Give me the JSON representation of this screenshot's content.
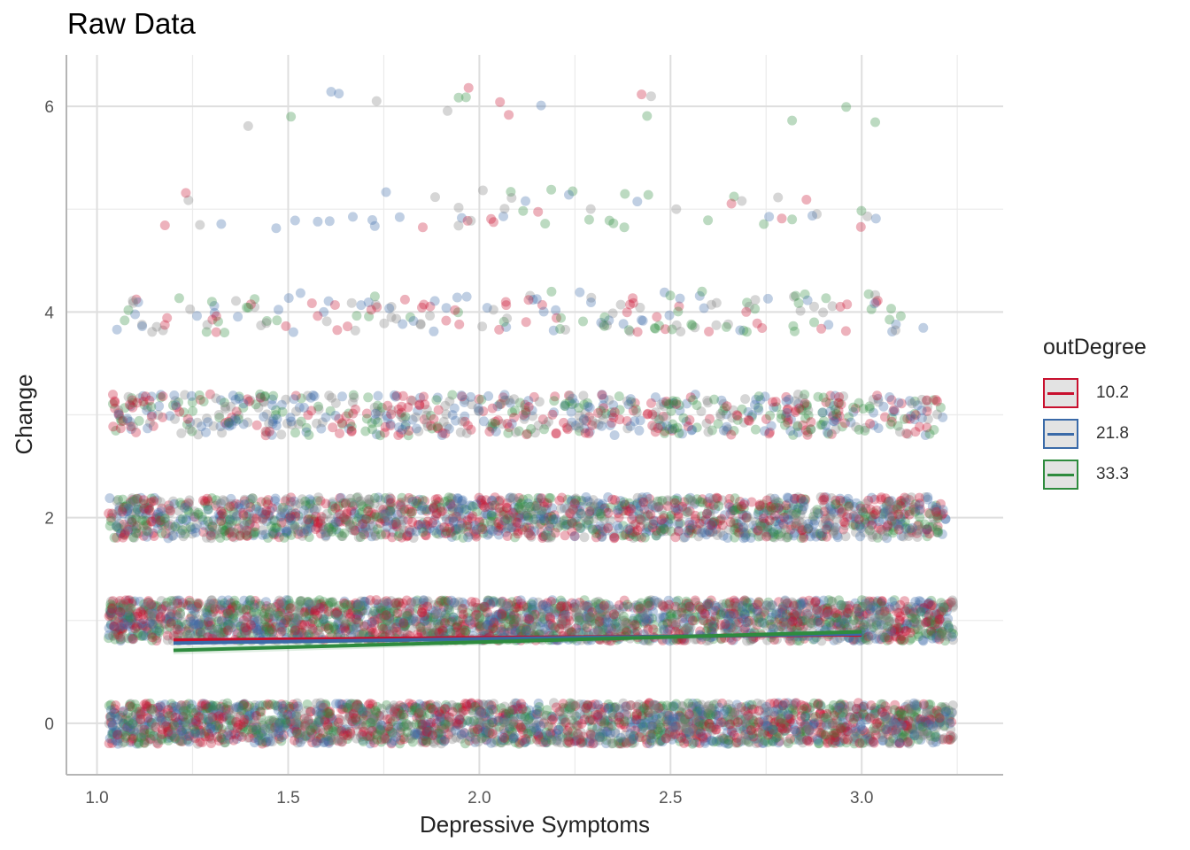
{
  "chart_data": {
    "type": "scatter",
    "title": "Raw Data",
    "xlabel": "Depressive Symptoms",
    "ylabel": "Change",
    "xlim": [
      0.92,
      3.37
    ],
    "ylim": [
      -0.5,
      6.5
    ],
    "x_ticks": [
      "1.0",
      "1.5",
      "2.0",
      "2.5",
      "3.0"
    ],
    "x_tick_values": [
      1.0,
      1.5,
      2.0,
      2.5,
      3.0
    ],
    "y_ticks": [
      "0",
      "2",
      "4",
      "6"
    ],
    "y_tick_values": [
      0,
      2,
      4,
      6
    ],
    "grid": true,
    "legend_position": "right",
    "legend_title": "outDegree",
    "series": [
      {
        "name": "10.2",
        "color": "#c8102e",
        "line": {
          "x": [
            1.2,
            3.0
          ],
          "y": [
            0.81,
            0.86
          ]
        }
      },
      {
        "name": "21.8",
        "color": "#3a6aa8",
        "line": {
          "x": [
            1.2,
            3.0
          ],
          "y": [
            0.78,
            0.87
          ]
        }
      },
      {
        "name": "33.3",
        "color": "#2e8b3e",
        "line": {
          "x": [
            1.2,
            3.0
          ],
          "y": [
            0.71,
            0.89
          ]
        }
      }
    ],
    "point_bands": [
      {
        "y": 0,
        "density": "very high",
        "x_range": [
          1.03,
          3.24
        ]
      },
      {
        "y": 1,
        "density": "very high",
        "x_range": [
          1.03,
          3.24
        ]
      },
      {
        "y": 2,
        "density": "high",
        "x_range": [
          1.03,
          3.22
        ]
      },
      {
        "y": 3,
        "density": "medium",
        "x_range": [
          1.04,
          3.22
        ]
      },
      {
        "y": 4,
        "density": "low",
        "x_range": [
          1.05,
          3.17
        ]
      },
      {
        "y": 5,
        "density": "sparse",
        "x_range": [
          1.15,
          3.04
        ]
      },
      {
        "y": 6,
        "density": "very sparse",
        "x_range": [
          1.31,
          3.04
        ]
      }
    ],
    "point_colors": [
      "#c8102e",
      "#3a6aa8",
      "#2e8b3e",
      "#808080"
    ]
  }
}
